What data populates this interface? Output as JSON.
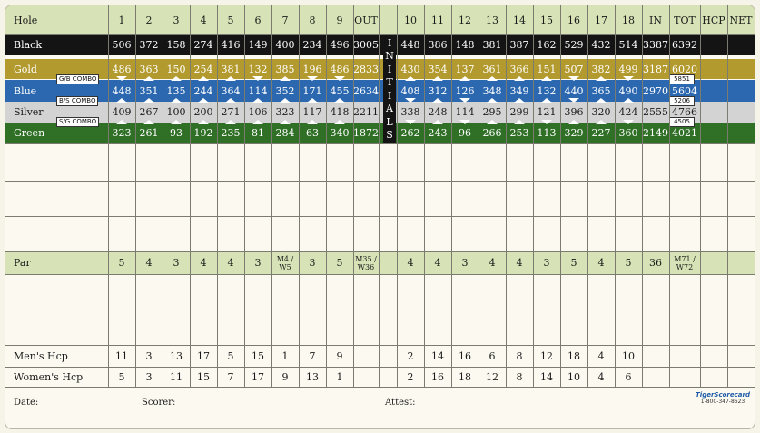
{
  "columns": [
    "Hole",
    "1",
    "2",
    "3",
    "4",
    "5",
    "6",
    "7",
    "8",
    "9",
    "OUT",
    "",
    "10",
    "11",
    "12",
    "13",
    "14",
    "15",
    "16",
    "17",
    "18",
    "IN",
    "TOT",
    "HCP",
    "NET"
  ],
  "tees": [
    {
      "name": "Black",
      "color": "#141414",
      "text": "#ffffff",
      "values": [
        "506",
        "372",
        "158",
        "274",
        "416",
        "149",
        "400",
        "234",
        "496",
        "3005",
        "448",
        "386",
        "148",
        "381",
        "387",
        "162",
        "529",
        "432",
        "514",
        "3387",
        "6392"
      ]
    },
    {
      "name": "Gold",
      "color": "#b39a2e",
      "text": "#ffffff",
      "values": [
        "486",
        "363",
        "150",
        "254",
        "381",
        "132",
        "385",
        "196",
        "486",
        "2833",
        "430",
        "354",
        "137",
        "361",
        "366",
        "151",
        "507",
        "382",
        "499",
        "3187",
        "6020"
      ]
    },
    {
      "name": "Blue",
      "color": "#2c68b0",
      "text": "#ffffff",
      "values": [
        "448",
        "351",
        "135",
        "244",
        "364",
        "114",
        "352",
        "171",
        "455",
        "2634",
        "408",
        "312",
        "126",
        "348",
        "349",
        "132",
        "440",
        "365",
        "490",
        "2970",
        "5604"
      ]
    },
    {
      "name": "Silver",
      "color": "#d3d3d3",
      "text": "#1a1a1a",
      "values": [
        "409",
        "267",
        "100",
        "200",
        "271",
        "106",
        "323",
        "117",
        "418",
        "2211",
        "338",
        "248",
        "114",
        "295",
        "299",
        "121",
        "396",
        "320",
        "424",
        "2555",
        "4766"
      ]
    },
    {
      "name": "Green",
      "color": "#2f6f26",
      "text": "#ffffff",
      "values": [
        "323",
        "261",
        "93",
        "192",
        "235",
        "81",
        "284",
        "63",
        "340",
        "1872",
        "262",
        "243",
        "96",
        "266",
        "253",
        "113",
        "329",
        "227",
        "360",
        "2149",
        "4021"
      ]
    }
  ],
  "combos": [
    {
      "label": "G/B COMBO",
      "total": "5851"
    },
    {
      "label": "B/S COMBO",
      "total": "5206"
    },
    {
      "label": "S/G COMBO",
      "total": "4505"
    }
  ],
  "initials_letters": [
    "I",
    "N",
    "I",
    "T",
    "I",
    "A",
    "L",
    "S"
  ],
  "par": {
    "label": "Par",
    "values": [
      "5",
      "4",
      "3",
      "4",
      "4",
      "3",
      "M4 / W5",
      "3",
      "5",
      "M35 / W36",
      "4",
      "4",
      "3",
      "4",
      "4",
      "3",
      "5",
      "4",
      "5",
      "36",
      "M71 / W72"
    ]
  },
  "mens_hcp": {
    "label": "Men's Hcp",
    "values": [
      "11",
      "3",
      "13",
      "17",
      "5",
      "15",
      "1",
      "7",
      "9",
      "",
      "2",
      "14",
      "16",
      "6",
      "8",
      "12",
      "18",
      "4",
      "10",
      "",
      ""
    ]
  },
  "womens_hcp": {
    "label": "Women's Hcp",
    "values": [
      "5",
      "3",
      "11",
      "15",
      "7",
      "17",
      "9",
      "13",
      "1",
      "",
      "2",
      "16",
      "18",
      "12",
      "8",
      "14",
      "10",
      "4",
      "6",
      "",
      ""
    ]
  },
  "footer": {
    "date": "Date:",
    "scorer": "Scorer:",
    "attest": "Attest:"
  },
  "logo": {
    "name": "TigerScorecard",
    "phone": "1-800-347-8623"
  }
}
